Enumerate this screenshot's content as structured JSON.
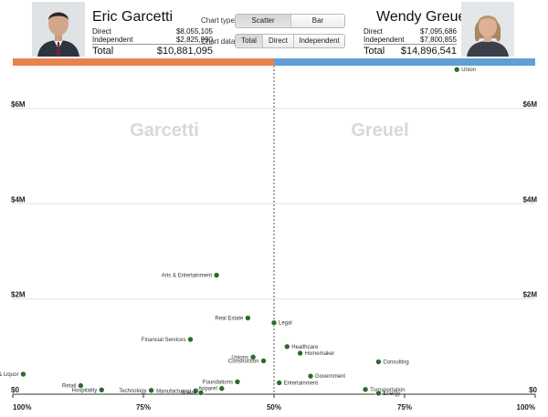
{
  "left_candidate": {
    "name": "Eric Garcetti",
    "direct_label": "Direct",
    "direct_value": "$8,055,105",
    "independent_label": "Independent",
    "independent_value": "$2,825,990",
    "total_label": "Total",
    "total_value": "$10,881,095",
    "color": "#e8824f"
  },
  "right_candidate": {
    "name": "Wendy Greuel",
    "direct_label": "Direct",
    "direct_value": "$7,095,686",
    "independent_label": "Independent",
    "independent_value": "$7,800,855",
    "total_label": "Total",
    "total_value": "$14,896,541",
    "color": "#5f9fd3"
  },
  "controls": {
    "chart_type_label": "Chart type:",
    "chart_type_options": [
      "Scatter",
      "Bar"
    ],
    "chart_type_selected": "Scatter",
    "chart_data_label": "Chart data:",
    "chart_data_options": [
      "Total",
      "Direct",
      "Independent"
    ],
    "chart_data_selected": "Total"
  },
  "chart_data": {
    "type": "scatter",
    "watermark_left": "Garcetti",
    "watermark_right": "Greuel",
    "x_ticks": [
      "100%",
      "75%",
      "50%",
      "75%",
      "100%"
    ],
    "y_ticks_left": [
      "$0",
      "$2M",
      "$4M",
      "$6M"
    ],
    "y_ticks_right": [
      "$0",
      "$2M",
      "$4M",
      "$6M"
    ],
    "y_tick_values": [
      0,
      2000000,
      4000000,
      6000000
    ],
    "x_tick_values": [
      -1,
      -0.5,
      0,
      0.5,
      1
    ],
    "xlim": [
      -1,
      1
    ],
    "ylim": [
      0,
      6900000
    ],
    "grid": true,
    "point_color": "#2d6a2d",
    "points": [
      {
        "label": "Union",
        "x": 0.7,
        "y": 6820000
      },
      {
        "label": "Arts & Entertainment",
        "x": -0.22,
        "y": 2500000
      },
      {
        "label": "Real Estate",
        "x": -0.1,
        "y": 1600000
      },
      {
        "label": "Legal",
        "x": 0.0,
        "y": 1500000
      },
      {
        "label": "Financial Services",
        "x": -0.32,
        "y": 1150000
      },
      {
        "label": "Healthcare",
        "x": 0.05,
        "y": 1000000
      },
      {
        "label": "Homemaker",
        "x": 0.1,
        "y": 860000
      },
      {
        "label": "Unions",
        "x": -0.08,
        "y": 780000
      },
      {
        "label": "Construction",
        "x": -0.04,
        "y": 700000
      },
      {
        "label": "Consulting",
        "x": 0.4,
        "y": 680000
      },
      {
        "label": "Food & Liquor",
        "x": -0.96,
        "y": 420000
      },
      {
        "label": "Government",
        "x": 0.14,
        "y": 380000
      },
      {
        "label": "Foundations",
        "x": -0.14,
        "y": 260000
      },
      {
        "label": "Entertainment",
        "x": 0.02,
        "y": 240000
      },
      {
        "label": "Retail",
        "x": -0.74,
        "y": 180000
      },
      {
        "label": "Apparel",
        "x": -0.2,
        "y": 120000
      },
      {
        "label": "Transportation",
        "x": 0.35,
        "y": 100000
      },
      {
        "label": "Hospitality",
        "x": -0.66,
        "y": 90000
      },
      {
        "label": "Technology",
        "x": -0.47,
        "y": 80000
      },
      {
        "label": "Manufacturing",
        "x": -0.3,
        "y": 70000
      },
      {
        "label": "Waste",
        "x": -0.28,
        "y": 30000
      },
      {
        "label": "Energy",
        "x": 0.4,
        "y": 20000
      }
    ]
  }
}
